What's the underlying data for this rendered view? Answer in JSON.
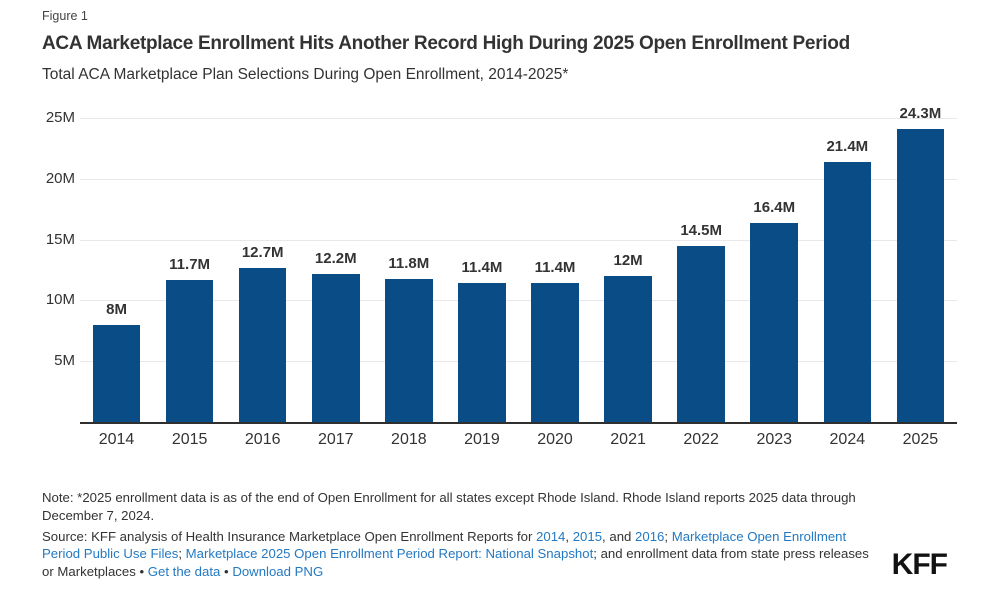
{
  "figure_label": "Figure 1",
  "title": "ACA Marketplace Enrollment Hits Another Record High During 2025 Open Enrollment Period",
  "subtitle": "Total ACA Marketplace Plan Selections During Open Enrollment, 2014-2025*",
  "chart_data": {
    "type": "bar",
    "title": "Total ACA Marketplace Plan Selections During Open Enrollment, 2014-2025*",
    "categories": [
      "2014",
      "2015",
      "2016",
      "2017",
      "2018",
      "2019",
      "2020",
      "2021",
      "2022",
      "2023",
      "2024",
      "2025"
    ],
    "values": [
      8,
      11.7,
      12.7,
      12.2,
      11.8,
      11.4,
      11.4,
      12,
      14.5,
      16.4,
      21.4,
      24.3
    ],
    "value_labels": [
      "8M",
      "11.7M",
      "12.7M",
      "12.2M",
      "11.8M",
      "11.4M",
      "11.4M",
      "12M",
      "14.5M",
      "16.4M",
      "21.4M",
      "24.3M"
    ],
    "xlabel": "",
    "ylabel": "",
    "ylim": [
      0,
      25
    ],
    "yticks": [
      5,
      10,
      15,
      20,
      25
    ],
    "ytick_labels": [
      "5M",
      "10M",
      "15M",
      "20M",
      "25M"
    ],
    "grid": true,
    "legend": "none",
    "bar_color": "#0a4d86"
  },
  "note": "Note: *2025 enrollment data is as of the end of Open Enrollment for all states except Rhode Island. Rhode Island reports 2025 data through December 7, 2024.",
  "source_segments": [
    {
      "text": "Source: KFF analysis of Health Insurance Marketplace Open Enrollment Reports for ",
      "link": false
    },
    {
      "text": "2014",
      "link": true
    },
    {
      "text": ", ",
      "link": false
    },
    {
      "text": "2015",
      "link": true
    },
    {
      "text": ", and ",
      "link": false
    },
    {
      "text": "2016",
      "link": true
    },
    {
      "text": "; ",
      "link": false
    },
    {
      "text": "Marketplace Open Enrollment Period Public Use Files",
      "link": true
    },
    {
      "text": "; ",
      "link": false
    },
    {
      "text": "Marketplace 2025 Open Enrollment Period Report: National Snapshot",
      "link": true
    },
    {
      "text": "; and enrollment data from state press releases or Marketplaces • ",
      "link": false
    },
    {
      "text": "Get the data",
      "link": true
    },
    {
      "text": " • ",
      "link": false
    },
    {
      "text": "Download PNG",
      "link": true
    }
  ],
  "logo": "KFF",
  "colors": {
    "bar": "#0a4d86",
    "link": "#2379c2",
    "text": "#333333",
    "gridline": "#e8e8ea",
    "axis_line": "#2f2f2f",
    "logo": "#121212",
    "background": "#ffffff"
  }
}
